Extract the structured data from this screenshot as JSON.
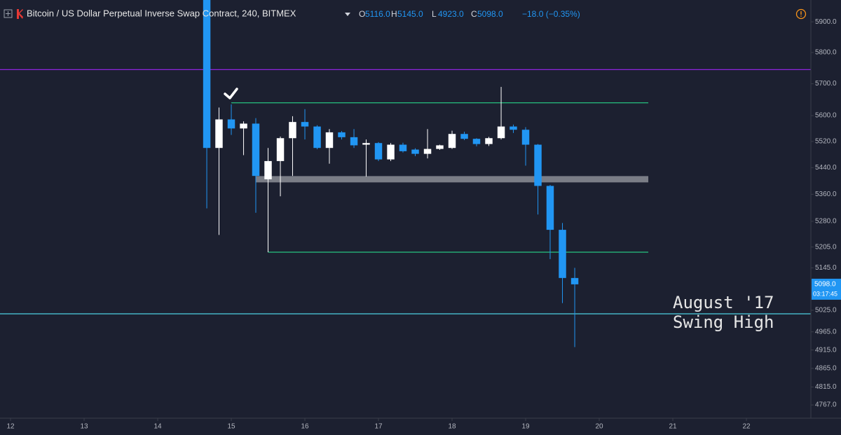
{
  "chart_data": {
    "type": "candlestick",
    "header": {
      "symbol": "Bitcoin / US Dollar Perpetual Inverse Swap Contract, 240, BITMEX",
      "ohlc": [
        {
          "label": "O",
          "value": "5116.0"
        },
        {
          "label": "H",
          "value": "5145.0"
        },
        {
          "label": "L",
          "value": "4923.0"
        },
        {
          "label": "C",
          "value": "5098.0"
        }
      ],
      "change": "−18.0 (−0.35%)"
    },
    "x": [
      14.667,
      14.833,
      15,
      15.167,
      15.333,
      15.5,
      15.667,
      15.833,
      16,
      16.167,
      16.333,
      16.5,
      16.667,
      16.833,
      17,
      17.167,
      17.333,
      17.5,
      17.667,
      17.833,
      18,
      18.167,
      18.333,
      18.5,
      18.667,
      18.833,
      19,
      19.167,
      19.333,
      19.5,
      19.667
    ],
    "open": [
      5980,
      5500,
      5588,
      5560,
      5575,
      5405,
      5460,
      5530,
      5580,
      5566,
      5500,
      5548,
      5533,
      5510,
      5515,
      5465,
      5510,
      5495,
      5482,
      5497,
      5500,
      5543,
      5528,
      5512,
      5530,
      5566,
      5556,
      5510,
      5385,
      5255,
      5116
    ],
    "high": [
      5990,
      5625,
      5635,
      5582,
      5592,
      5500,
      5535,
      5598,
      5620,
      5570,
      5558,
      5552,
      5558,
      5526,
      5518,
      5515,
      5516,
      5499,
      5558,
      5510,
      5553,
      5550,
      5530,
      5534,
      5690,
      5572,
      5564,
      5512,
      5388,
      5275,
      5145
    ],
    "low": [
      5318,
      5240,
      5540,
      5478,
      5305,
      5190,
      5354,
      5415,
      5526,
      5496,
      5452,
      5526,
      5500,
      5413,
      5460,
      5460,
      5486,
      5475,
      5468,
      5494,
      5497,
      5524,
      5505,
      5506,
      5526,
      5546,
      5446,
      5300,
      5170,
      5045,
      4923
    ],
    "close": [
      5500,
      5588,
      5560,
      5575,
      5415,
      5460,
      5530,
      5580,
      5566,
      5500,
      5548,
      5533,
      5508,
      5515,
      5465,
      5510,
      5490,
      5482,
      5497,
      5508,
      5543,
      5528,
      5512,
      5530,
      5566,
      5556,
      5510,
      5385,
      5255,
      5116,
      5098
    ],
    "up_color": "#ffffff",
    "down_color": "#2196f3",
    "log_scale": true,
    "grid": false,
    "xlim": [
      11.857,
      22.876
    ],
    "xticks": [
      12,
      13,
      14,
      15,
      16,
      17,
      18,
      19,
      20,
      21,
      22
    ],
    "ylim": [
      4732,
      5972
    ],
    "yticks": [
      {
        "value": 5900,
        "label": "5900.0"
      },
      {
        "value": 5800,
        "label": "5800.0"
      },
      {
        "value": 5700,
        "label": "5700.0"
      },
      {
        "value": 5600,
        "label": "5600.0"
      },
      {
        "value": 5520,
        "label": "5520.0"
      },
      {
        "value": 5440,
        "label": "5440.0"
      },
      {
        "value": 5360,
        "label": "5360.0"
      },
      {
        "value": 5280,
        "label": "5280.0"
      },
      {
        "value": 5205,
        "label": "5205.0"
      },
      {
        "value": 5145,
        "label": "5145.0"
      },
      {
        "value": 5025,
        "label": "5025.0"
      },
      {
        "value": 4965,
        "label": "4965.0"
      },
      {
        "value": 4915,
        "label": "4915.0"
      },
      {
        "value": 4865,
        "label": "4865.0"
      },
      {
        "value": 4815,
        "label": "4815.0"
      },
      {
        "value": 4767,
        "label": "4767.0"
      }
    ],
    "levels": [
      {
        "price": 5745,
        "color": "#8e24dd"
      },
      {
        "price": 5640,
        "from": 15,
        "to": 20.667,
        "color": "#26c281"
      },
      {
        "price": 5405,
        "from": 15.333,
        "to": 20.667,
        "color": "#9a9ca3",
        "style": "band"
      },
      {
        "price": 5190,
        "from": 15.5,
        "to": 20.667,
        "color": "#26c281"
      },
      {
        "price": 5015,
        "color": "#4dd0e1"
      }
    ],
    "last_price": {
      "label": "5098.0",
      "countdown": "03:17:45"
    },
    "annotation": [
      "August '17",
      "Swing High"
    ]
  }
}
